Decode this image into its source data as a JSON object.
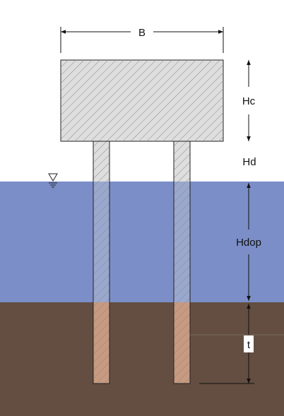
{
  "labels": {
    "width": "B",
    "cap_height": "Hc",
    "free_height": "Hd",
    "water_depth": "Hdop",
    "embedment": "t"
  },
  "icons": {
    "water_level": "water-level-triangle-icon"
  },
  "colors": {
    "sky": "#ffffff",
    "water": "#7b8ec8",
    "soil": "#634e41",
    "concrete": "#dedede",
    "pile_in_water": "#9aa8cf",
    "pile_in_soil": "#c89a80",
    "outline": "#222222",
    "hatch": "#8a8a8a"
  }
}
